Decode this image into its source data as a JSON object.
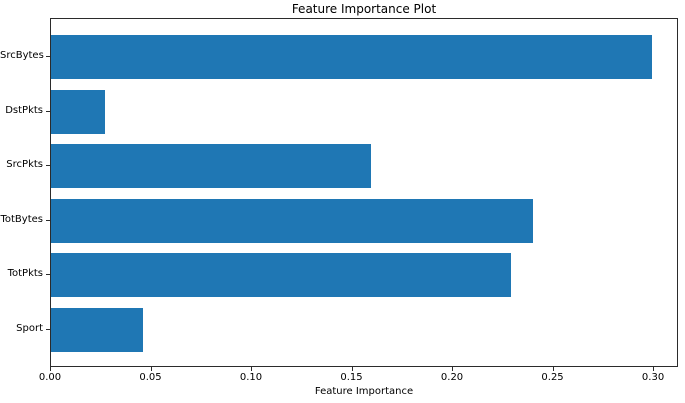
{
  "chart_data": {
    "type": "bar",
    "orientation": "horizontal",
    "title": "Feature Importance Plot",
    "xlabel": "Feature Importance",
    "ylabel": "",
    "categories": [
      "SrcBytes",
      "DstPkts",
      "SrcPkts",
      "TotBytes",
      "TotPkts",
      "Sport"
    ],
    "values": [
      0.299,
      0.027,
      0.159,
      0.24,
      0.229,
      0.046
    ],
    "xlim": [
      0,
      0.3124
    ],
    "xticks": [
      0.0,
      0.05,
      0.1,
      0.15,
      0.2,
      0.25,
      0.3
    ],
    "xtick_labels": [
      "0.00",
      "0.05",
      "0.10",
      "0.15",
      "0.20",
      "0.25",
      "0.30"
    ],
    "bar_color": "#1f77b4",
    "spine_color": "#2b2b2b",
    "text_color": "#000000",
    "grid": false,
    "legend": null
  }
}
